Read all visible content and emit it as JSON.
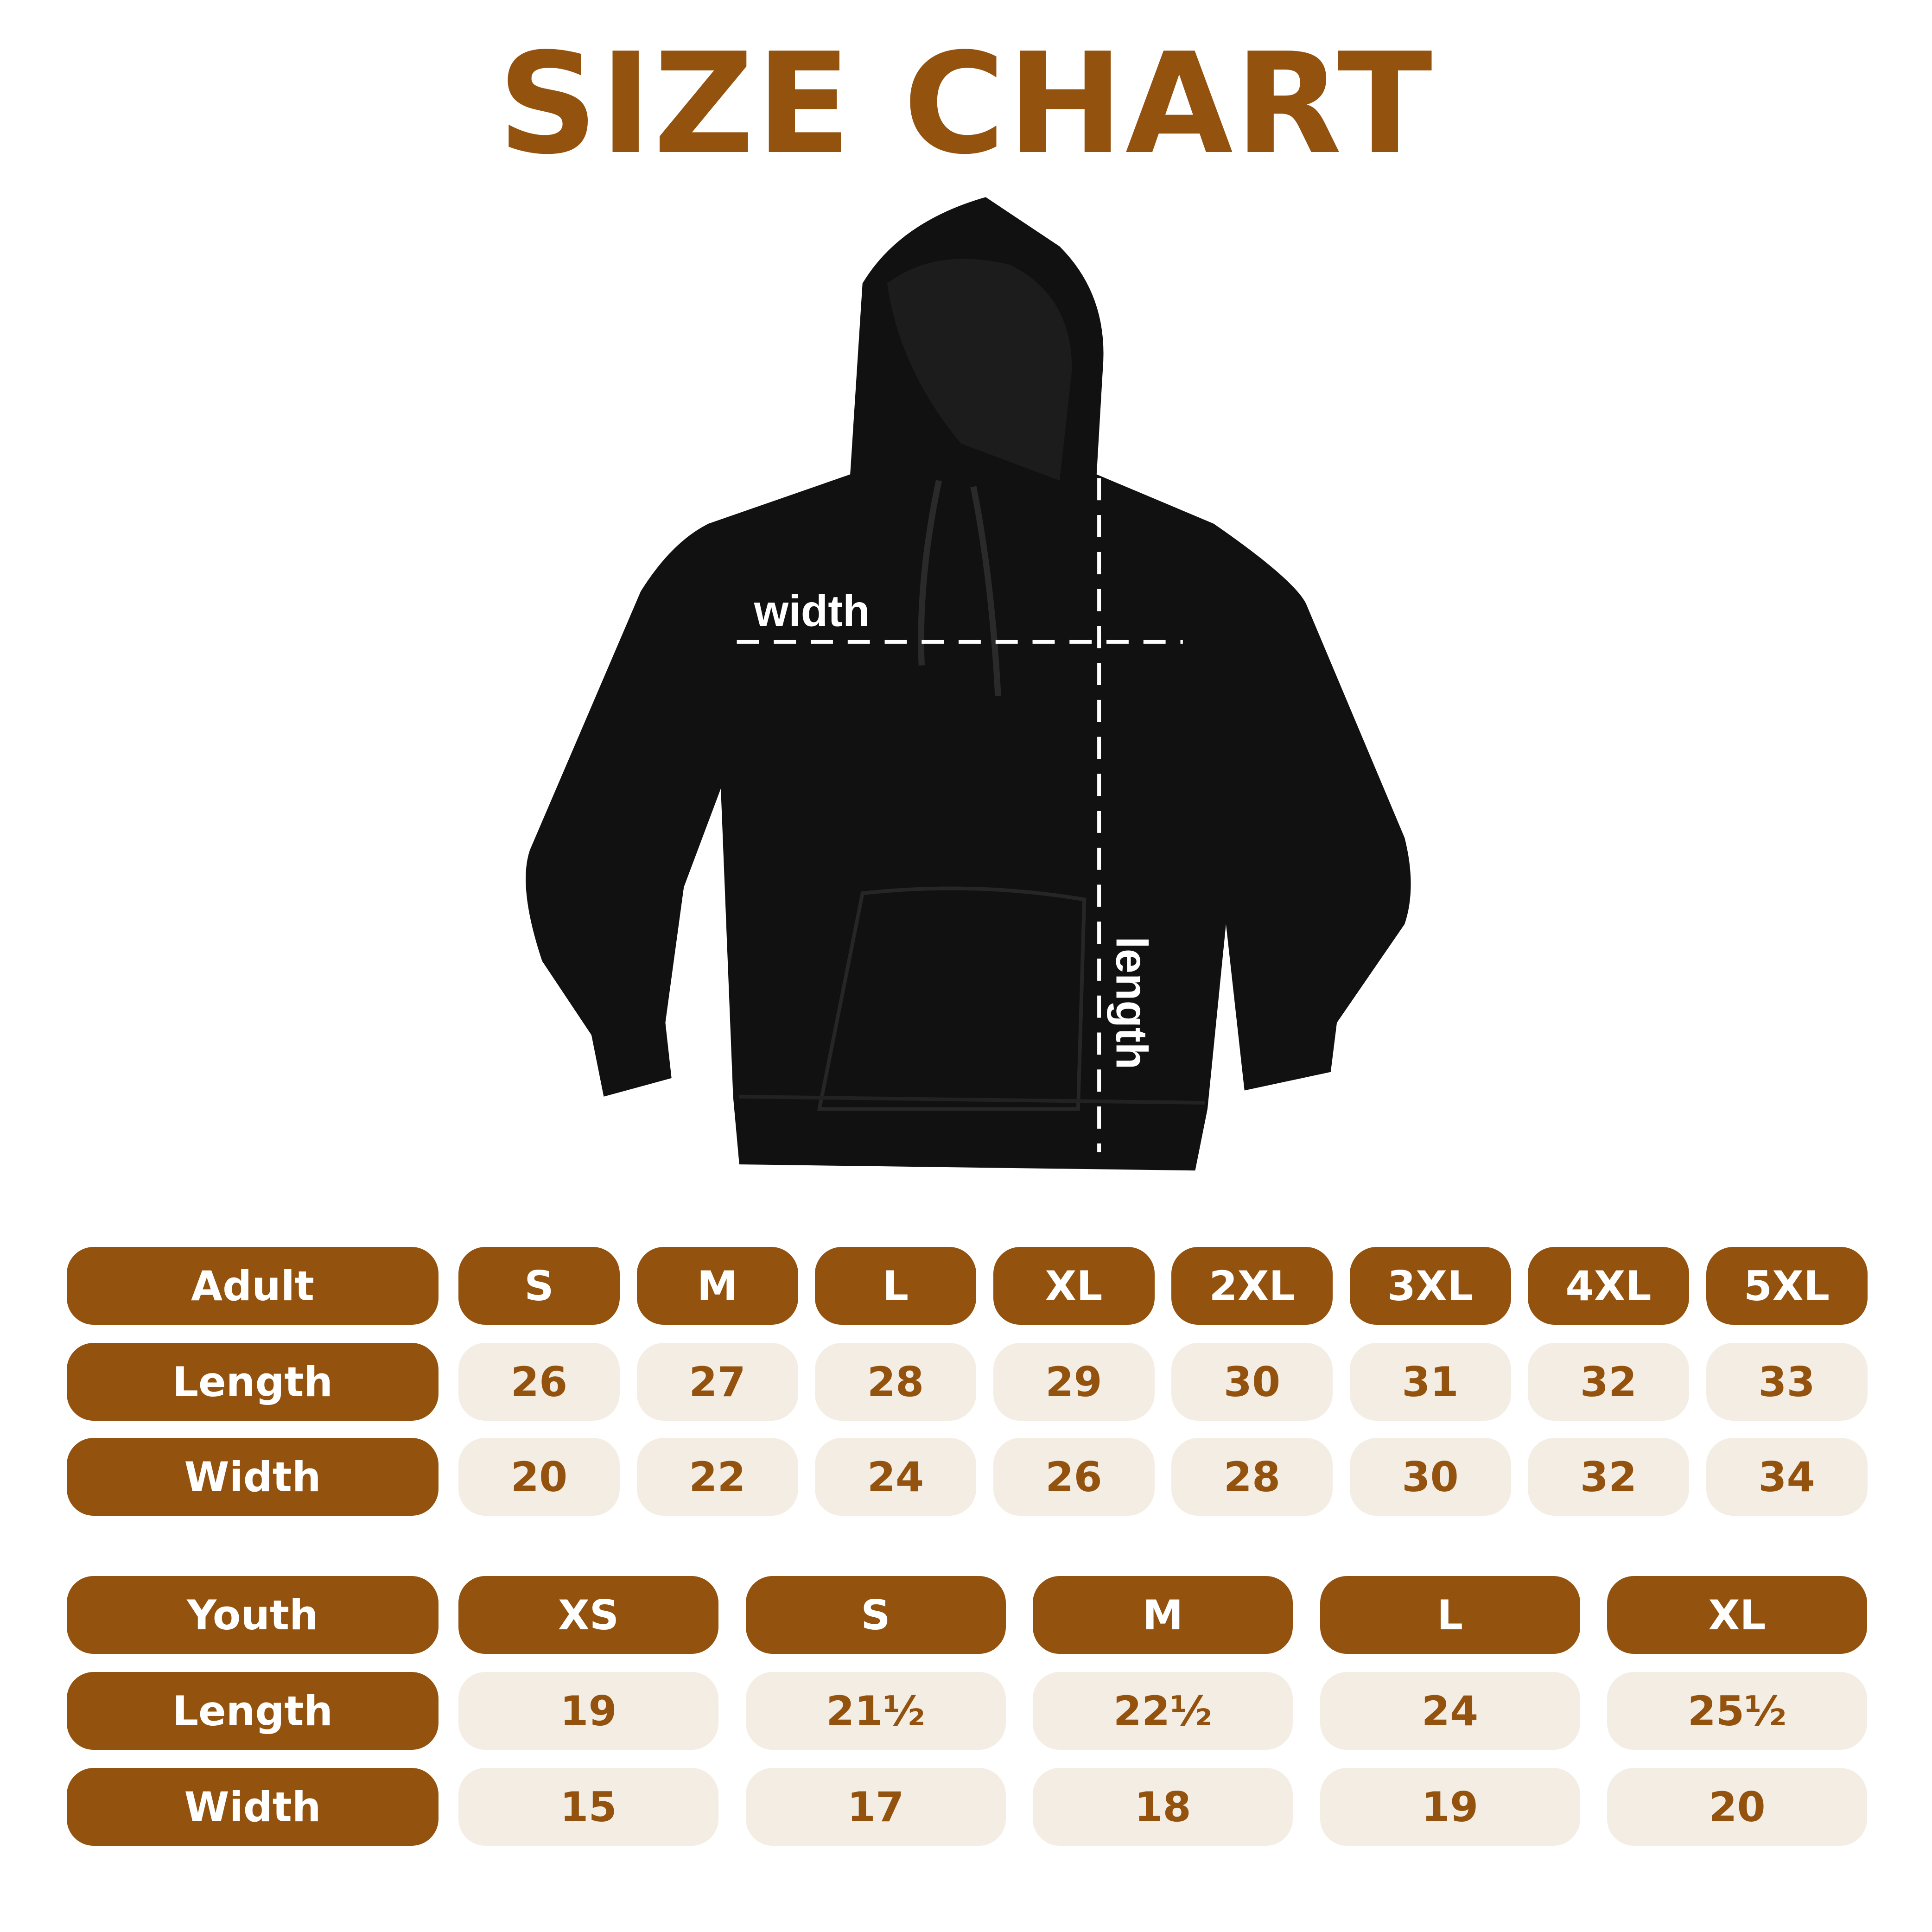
{
  "title": "SIZE CHART",
  "colors": {
    "brand": "#93520E",
    "cell_bg": "#F4EDE4",
    "garment": "#111111"
  },
  "diagram": {
    "width_label": "width",
    "length_label": "length"
  },
  "adult": {
    "label": "Adult",
    "sizes": [
      "S",
      "M",
      "L",
      "XL",
      "2XL",
      "3XL",
      "4XL",
      "5XL"
    ],
    "rows": [
      {
        "label": "Length",
        "values": [
          "26",
          "27",
          "28",
          "29",
          "30",
          "31",
          "32",
          "33"
        ]
      },
      {
        "label": "Width",
        "values": [
          "20",
          "22",
          "24",
          "26",
          "28",
          "30",
          "32",
          "34"
        ]
      }
    ]
  },
  "youth": {
    "label": "Youth",
    "sizes": [
      "XS",
      "S",
      "M",
      "L",
      "XL"
    ],
    "rows": [
      {
        "label": "Length",
        "values": [
          "19",
          "21½",
          "22½",
          "24",
          "25½"
        ]
      },
      {
        "label": "Width",
        "values": [
          "15",
          "17",
          "18",
          "19",
          "20"
        ]
      }
    ]
  }
}
